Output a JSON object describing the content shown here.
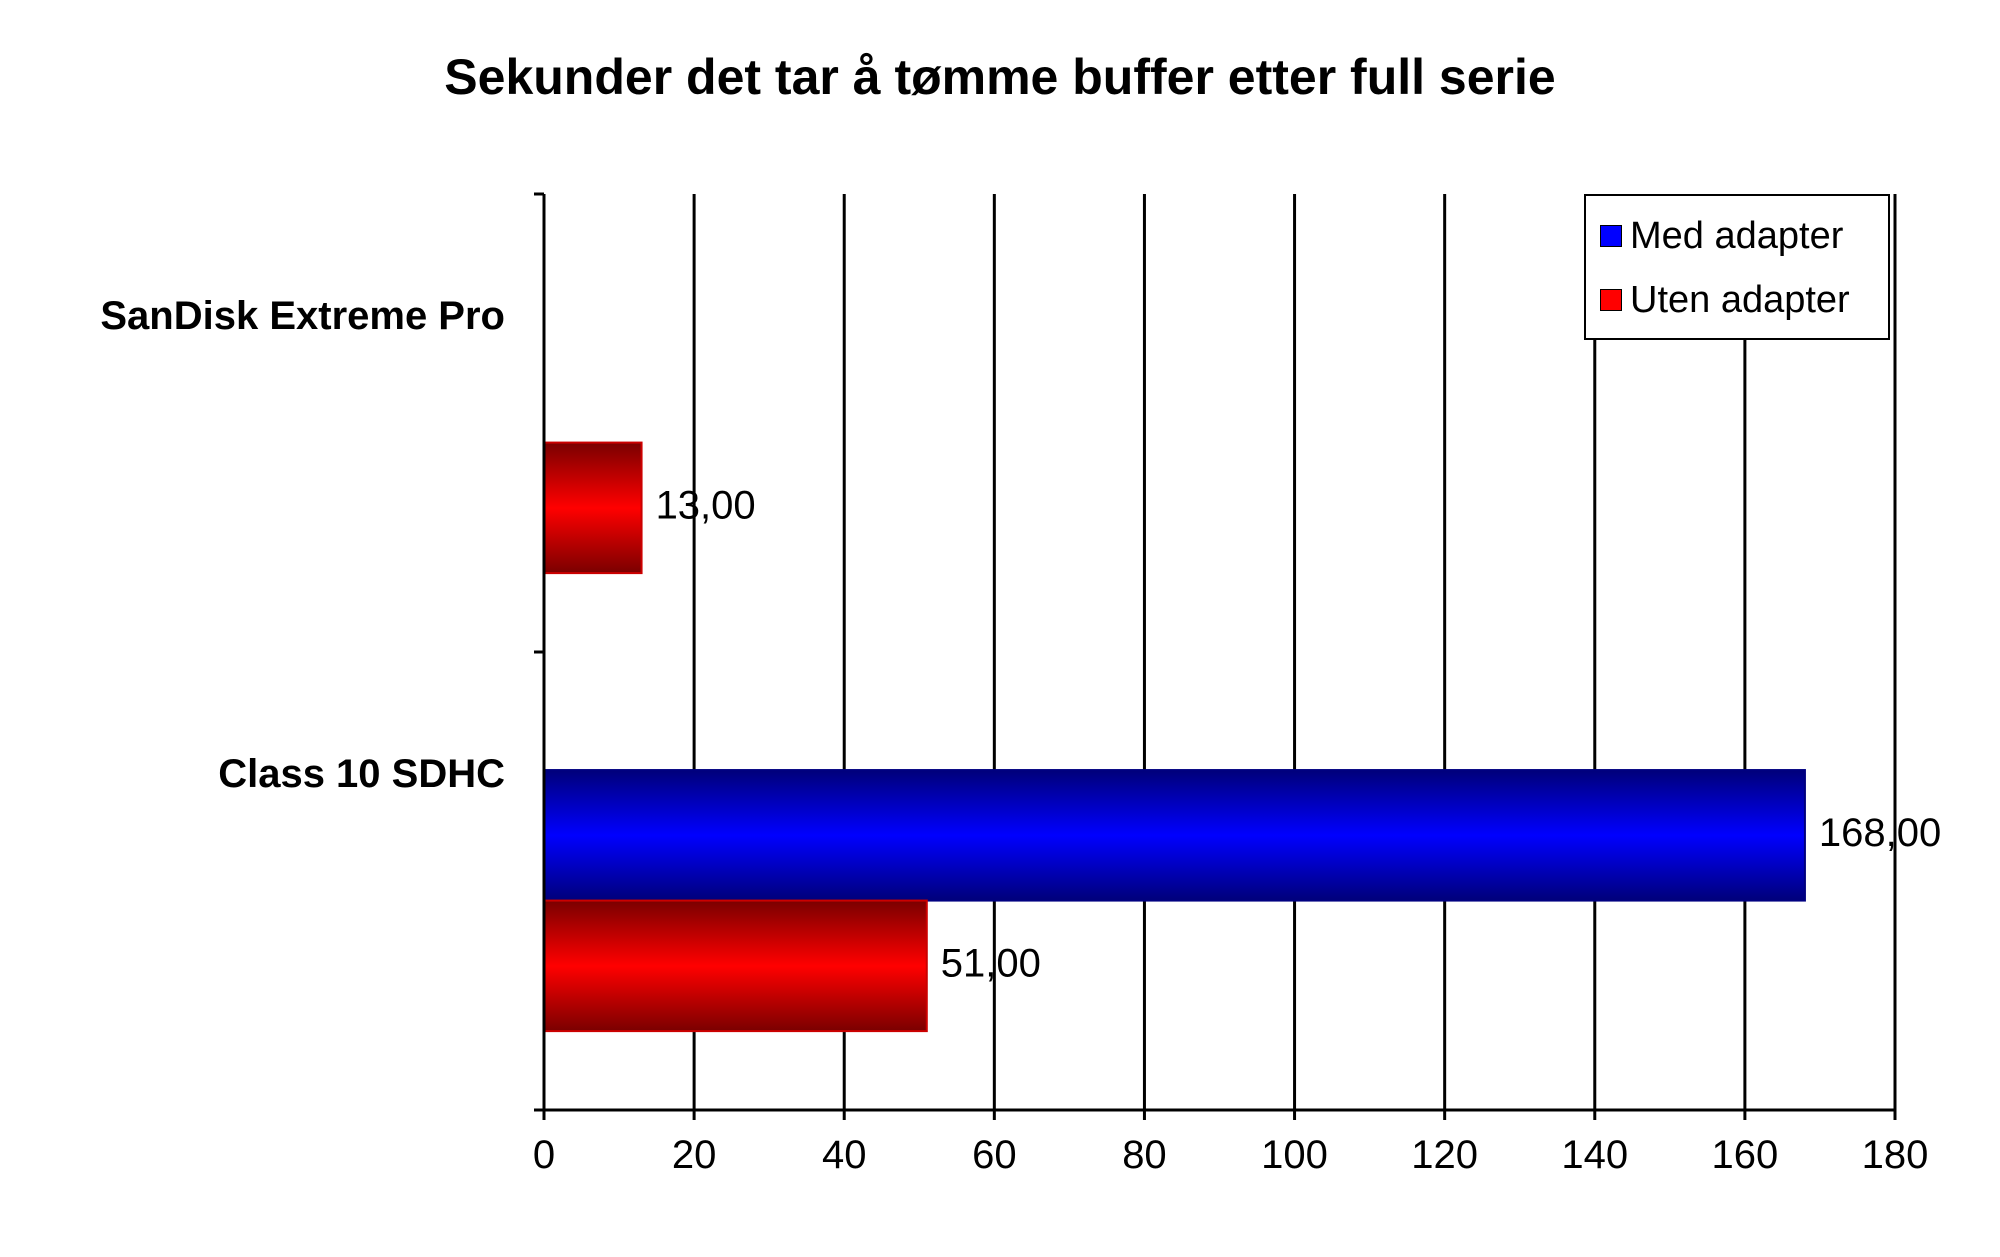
{
  "chart_data": {
    "type": "bar",
    "orientation": "horizontal",
    "title": "Sekunder det tar å tømme buffer etter full serie",
    "categories": [
      "SanDisk Extreme Pro",
      "Class 10 SDHC"
    ],
    "series": [
      {
        "name": "Med adapter",
        "color": "#0000ff",
        "values": [
          null,
          168
        ],
        "labels": [
          "",
          "168,00"
        ]
      },
      {
        "name": "Uten adapter",
        "color": "#ff0000",
        "values": [
          13,
          51
        ],
        "labels": [
          "13,00",
          "51,00"
        ]
      }
    ],
    "xlim": [
      0,
      180
    ],
    "xticks": [
      0,
      20,
      40,
      60,
      80,
      100,
      120,
      140,
      160,
      180
    ],
    "grid": true,
    "legend": "top-right",
    "xlabel": "",
    "ylabel": ""
  }
}
